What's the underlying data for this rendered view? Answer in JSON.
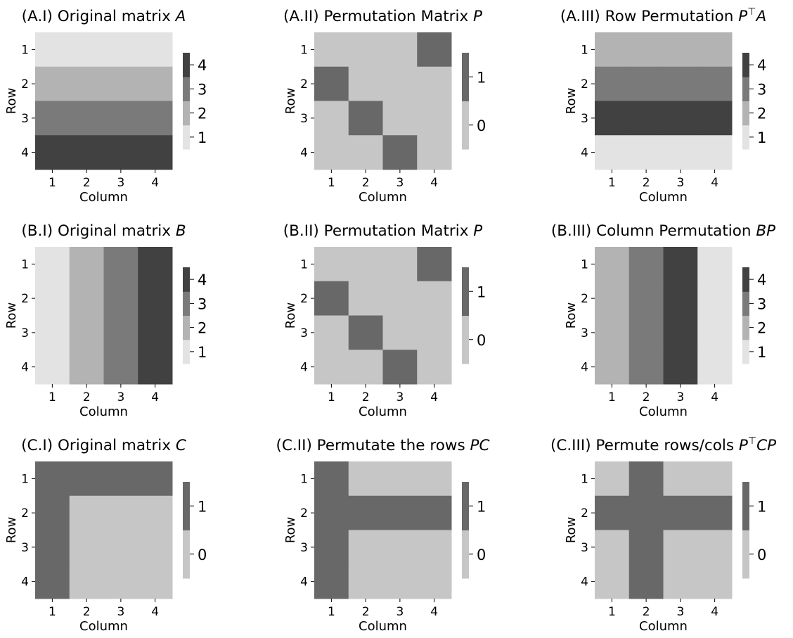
{
  "figure": {
    "palette": {
      "1": "#e3e3e3",
      "2": "#b3b3b3",
      "3": "#7a7a7a",
      "4": "#414141"
    },
    "binary_palette": {
      "0": "#c6c6c6",
      "1": "#686868"
    }
  },
  "chart_data": [
    {
      "type": "heatmap",
      "title_text": "(A.I) Original matrix ",
      "title_math": "A",
      "title_sup": "",
      "title_math2": "",
      "xlabel": "Column",
      "ylabel": "Row",
      "x_ticks": [
        "1",
        "2",
        "3",
        "4"
      ],
      "y_ticks": [
        "1",
        "2",
        "3",
        "4"
      ],
      "values": [
        [
          1,
          1,
          1,
          1
        ],
        [
          2,
          2,
          2,
          2
        ],
        [
          3,
          3,
          3,
          3
        ],
        [
          4,
          4,
          4,
          4
        ]
      ],
      "colorbar": {
        "ticks": [
          "1",
          "2",
          "3",
          "4"
        ],
        "levels": 4
      }
    },
    {
      "type": "heatmap",
      "title_text": "(A.II) Permutation Matrix ",
      "title_math": "P",
      "title_sup": "",
      "title_math2": "",
      "xlabel": "Column",
      "ylabel": "Row",
      "x_ticks": [
        "1",
        "2",
        "3",
        "4"
      ],
      "y_ticks": [
        "1",
        "2",
        "3",
        "4"
      ],
      "values": [
        [
          0,
          0,
          0,
          1
        ],
        [
          1,
          0,
          0,
          0
        ],
        [
          0,
          1,
          0,
          0
        ],
        [
          0,
          0,
          1,
          0
        ]
      ],
      "colorbar": {
        "ticks": [
          "0",
          "1"
        ],
        "levels": 2
      }
    },
    {
      "type": "heatmap",
      "title_text": "(A.III) Row Permutation ",
      "title_math": "P",
      "title_sup": "⊤",
      "title_math2": "A",
      "xlabel": "Column",
      "ylabel": "Row",
      "x_ticks": [
        "1",
        "2",
        "3",
        "4"
      ],
      "y_ticks": [
        "1",
        "2",
        "3",
        "4"
      ],
      "values": [
        [
          2,
          2,
          2,
          2
        ],
        [
          3,
          3,
          3,
          3
        ],
        [
          4,
          4,
          4,
          4
        ],
        [
          1,
          1,
          1,
          1
        ]
      ],
      "colorbar": {
        "ticks": [
          "1",
          "2",
          "3",
          "4"
        ],
        "levels": 4
      }
    },
    {
      "type": "heatmap",
      "title_text": "(B.I) Original matrix ",
      "title_math": "B",
      "title_sup": "",
      "title_math2": "",
      "xlabel": "Column",
      "ylabel": "Row",
      "x_ticks": [
        "1",
        "2",
        "3",
        "4"
      ],
      "y_ticks": [
        "1",
        "2",
        "3",
        "4"
      ],
      "values": [
        [
          1,
          2,
          3,
          4
        ],
        [
          1,
          2,
          3,
          4
        ],
        [
          1,
          2,
          3,
          4
        ],
        [
          1,
          2,
          3,
          4
        ]
      ],
      "colorbar": {
        "ticks": [
          "1",
          "2",
          "3",
          "4"
        ],
        "levels": 4
      }
    },
    {
      "type": "heatmap",
      "title_text": "(B.II) Permutation Matrix ",
      "title_math": "P",
      "title_sup": "",
      "title_math2": "",
      "xlabel": "Column",
      "ylabel": "Row",
      "x_ticks": [
        "1",
        "2",
        "3",
        "4"
      ],
      "y_ticks": [
        "1",
        "2",
        "3",
        "4"
      ],
      "values": [
        [
          0,
          0,
          0,
          1
        ],
        [
          1,
          0,
          0,
          0
        ],
        [
          0,
          1,
          0,
          0
        ],
        [
          0,
          0,
          1,
          0
        ]
      ],
      "colorbar": {
        "ticks": [
          "0",
          "1"
        ],
        "levels": 2
      }
    },
    {
      "type": "heatmap",
      "title_text": "(B.III) Column Permutation ",
      "title_math": "BP",
      "title_sup": "",
      "title_math2": "",
      "xlabel": "Column",
      "ylabel": "Row",
      "x_ticks": [
        "1",
        "2",
        "3",
        "4"
      ],
      "y_ticks": [
        "1",
        "2",
        "3",
        "4"
      ],
      "values": [
        [
          2,
          3,
          4,
          1
        ],
        [
          2,
          3,
          4,
          1
        ],
        [
          2,
          3,
          4,
          1
        ],
        [
          2,
          3,
          4,
          1
        ]
      ],
      "colorbar": {
        "ticks": [
          "1",
          "2",
          "3",
          "4"
        ],
        "levels": 4
      }
    },
    {
      "type": "heatmap",
      "title_text": "(C.I) Original matrix ",
      "title_math": "C",
      "title_sup": "",
      "title_math2": "",
      "xlabel": "Column",
      "ylabel": "Row",
      "x_ticks": [
        "1",
        "2",
        "3",
        "4"
      ],
      "y_ticks": [
        "1",
        "2",
        "3",
        "4"
      ],
      "values": [
        [
          1,
          1,
          1,
          1
        ],
        [
          1,
          0,
          0,
          0
        ],
        [
          1,
          0,
          0,
          0
        ],
        [
          1,
          0,
          0,
          0
        ]
      ],
      "colorbar": {
        "ticks": [
          "0",
          "1"
        ],
        "levels": 2
      }
    },
    {
      "type": "heatmap",
      "title_text": "(C.II) Permutate the rows ",
      "title_math": "PC",
      "title_sup": "",
      "title_math2": "",
      "xlabel": "Column",
      "ylabel": "Row",
      "x_ticks": [
        "1",
        "2",
        "3",
        "4"
      ],
      "y_ticks": [
        "1",
        "2",
        "3",
        "4"
      ],
      "values": [
        [
          1,
          0,
          0,
          0
        ],
        [
          1,
          1,
          1,
          1
        ],
        [
          1,
          0,
          0,
          0
        ],
        [
          1,
          0,
          0,
          0
        ]
      ],
      "colorbar": {
        "ticks": [
          "0",
          "1"
        ],
        "levels": 2
      }
    },
    {
      "type": "heatmap",
      "title_text": "(C.III) Permute rows/cols ",
      "title_math": "P",
      "title_sup": "⊤",
      "title_math2": "CP",
      "xlabel": "Column",
      "ylabel": "Row",
      "x_ticks": [
        "1",
        "2",
        "3",
        "4"
      ],
      "y_ticks": [
        "1",
        "2",
        "3",
        "4"
      ],
      "values": [
        [
          0,
          1,
          0,
          0
        ],
        [
          1,
          1,
          1,
          1
        ],
        [
          0,
          1,
          0,
          0
        ],
        [
          0,
          1,
          0,
          0
        ]
      ],
      "colorbar": {
        "ticks": [
          "0",
          "1"
        ],
        "levels": 2
      }
    }
  ]
}
